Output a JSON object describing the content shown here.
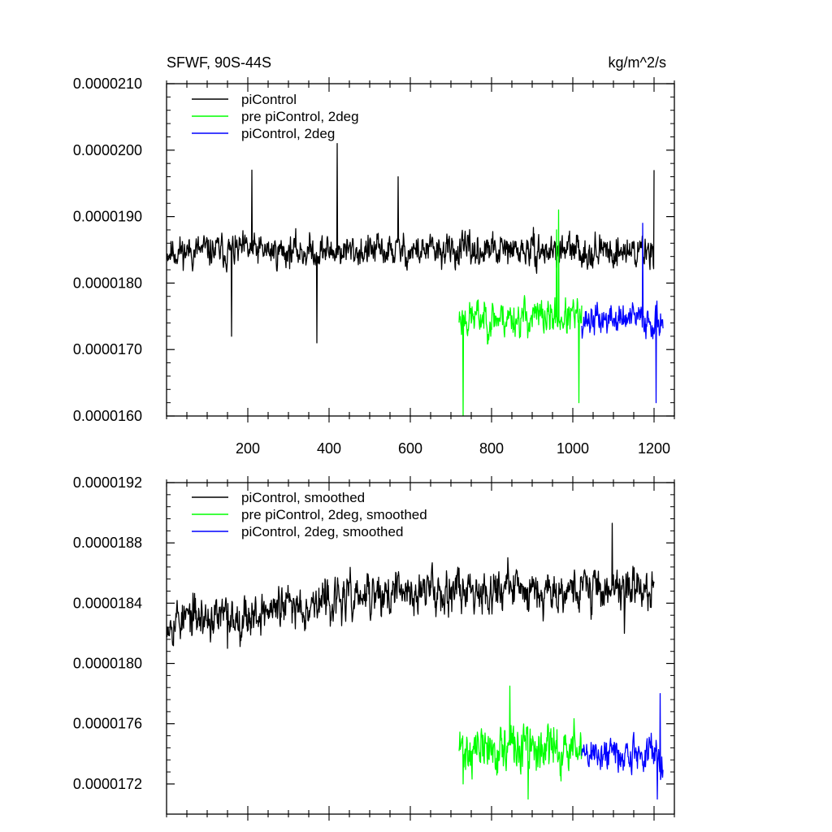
{
  "chart_data": [
    {
      "type": "line",
      "title": "SFWF, 90S-44S",
      "units": "kg/m^2/s",
      "xlim": [
        0,
        1250
      ],
      "ylim": [
        1.6e-05,
        2.1e-05
      ],
      "xticks": [
        200,
        400,
        600,
        800,
        1000,
        1200
      ],
      "xticklabels": [
        "200",
        "400",
        "600",
        "800",
        "1000",
        "1200"
      ],
      "yticks": [
        1.6e-05,
        1.7e-05,
        1.8e-05,
        1.9e-05,
        2e-05,
        2.1e-05
      ],
      "yticklabels": [
        "0.0000160",
        "0.0000170",
        "0.0000180",
        "0.0000190",
        "0.0000200",
        "0.0000210"
      ],
      "legend_position": "top-left",
      "series": [
        {
          "name": "piControl",
          "color": "#000000",
          "x_range": [
            1,
            1200
          ],
          "mean": 1.848e-05,
          "spread": 4.2e-07,
          "seed": 11,
          "spikes": [
            [
              420,
              2.01e-05
            ],
            [
              210,
              1.97e-05
            ],
            [
              1200,
              1.97e-05
            ],
            [
              370,
              1.71e-05
            ],
            [
              570,
              1.96e-05
            ],
            [
              160,
              1.72e-05
            ]
          ]
        },
        {
          "name": "pre piControl, 2deg",
          "color": "#00ff00",
          "x_range": [
            720,
            1022
          ],
          "mean": 1.748e-05,
          "spread": 4.8e-07,
          "seed": 23,
          "spikes": [
            [
              965,
              1.91e-05
            ],
            [
              730,
              1.6e-05
            ],
            [
              1015,
              1.62e-05
            ],
            [
              960,
              1.88e-05
            ]
          ]
        },
        {
          "name": "piControl, 2deg",
          "color": "#0000ff",
          "x_range": [
            1022,
            1222
          ],
          "mean": 1.745e-05,
          "spread": 4.2e-07,
          "seed": 37,
          "spikes": [
            [
              1172,
              1.89e-05
            ],
            [
              1205,
              1.62e-05
            ]
          ]
        }
      ]
    },
    {
      "type": "line",
      "title": "",
      "xlim": [
        0,
        1250
      ],
      "ylim": [
        1.7e-05,
        1.92e-05
      ],
      "xticks": [
        200,
        400,
        600,
        800,
        1000,
        1200
      ],
      "yticks": [
        1.72e-05,
        1.76e-05,
        1.8e-05,
        1.84e-05,
        1.88e-05,
        1.92e-05
      ],
      "yticklabels": [
        "0.0000172",
        "0.0000176",
        "0.0000180",
        "0.0000184",
        "0.0000188",
        "0.0000192"
      ],
      "legend_position": "top-left",
      "series": [
        {
          "name": "piControl, smoothed",
          "color": "#000000",
          "x_range": [
            1,
            1200
          ],
          "mean": 1.845e-05,
          "spread": 2.5e-07,
          "seed": 53,
          "trend": [
            [
              0,
              1.83e-05
            ],
            [
              150,
              1.83e-05
            ],
            [
              350,
              1.84e-05
            ],
            [
              700,
              1.85e-05
            ],
            [
              1200,
              1.85e-05
            ]
          ],
          "spikes": [
            [
              1097,
              1.893e-05
            ],
            [
              1127,
              1.82e-05
            ],
            [
              150,
              1.81e-05
            ]
          ]
        },
        {
          "name": "pre piControl, 2deg, smoothed",
          "color": "#00ff00",
          "x_range": [
            720,
            1022
          ],
          "mean": 1.743e-05,
          "spread": 2.8e-07,
          "seed": 71,
          "spikes": [
            [
              845,
              1.785e-05
            ],
            [
              890,
              1.71e-05
            ],
            [
              730,
              1.72e-05
            ]
          ]
        },
        {
          "name": "piControl, 2deg, smoothed",
          "color": "#0000ff",
          "x_range": [
            1022,
            1222
          ],
          "mean": 1.74e-05,
          "spread": 2.2e-07,
          "seed": 89,
          "spikes": [
            [
              1215,
              1.78e-05
            ],
            [
              1208,
              1.71e-05
            ]
          ]
        }
      ]
    }
  ]
}
